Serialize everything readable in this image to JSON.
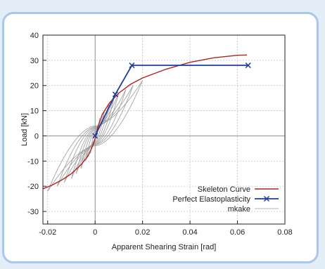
{
  "chart_data": {
    "type": "line",
    "xlabel": "Apparent Shearing Strain [rad]",
    "ylabel": "Load [kN]",
    "xlim": [
      -0.022,
      0.08
    ],
    "ylim": [
      -35,
      40
    ],
    "x_ticks": [
      "-0.02",
      "0",
      "0.02",
      "0.04",
      "0.06",
      "0.08"
    ],
    "y_ticks": [
      "40",
      "30",
      "20",
      "10",
      "0",
      "-10",
      "-20",
      "-30"
    ],
    "grid": true,
    "legend_position": "bottom-right",
    "series": [
      {
        "name": "Skeleton Curve",
        "color": "#b22222",
        "marker": "none",
        "points": [
          [
            -0.022,
            -21
          ],
          [
            -0.018,
            -19.5
          ],
          [
            -0.014,
            -17.5
          ],
          [
            -0.01,
            -15
          ],
          [
            -0.006,
            -11.5
          ],
          [
            -0.003,
            -8
          ],
          [
            -0.001,
            -4
          ],
          [
            0,
            -1
          ],
          [
            0.001,
            3
          ],
          [
            0.003,
            8.5
          ],
          [
            0.006,
            13
          ],
          [
            0.01,
            17
          ],
          [
            0.015,
            20.5
          ],
          [
            0.02,
            23
          ],
          [
            0.03,
            26.5
          ],
          [
            0.04,
            29.2
          ],
          [
            0.05,
            31
          ],
          [
            0.06,
            32
          ],
          [
            0.064,
            32.1
          ]
        ]
      },
      {
        "name": "Perfect Elastoplasticity",
        "color": "#1f3c9c",
        "marker": "x",
        "points": [
          [
            0,
            0
          ],
          [
            0.0085,
            16.5
          ],
          [
            0.0155,
            28
          ],
          [
            0.0645,
            28
          ]
        ]
      },
      {
        "name": "mkake",
        "color": "#9a9a9a",
        "marker": "none",
        "loops": [
          {
            "amp": 0.002,
            "peak": 7
          },
          {
            "amp": 0.004,
            "peak": 10
          },
          {
            "amp": 0.006,
            "peak": 13
          },
          {
            "amp": 0.008,
            "peak": 15
          },
          {
            "amp": 0.01,
            "peak": 17
          },
          {
            "amp": 0.013,
            "peak": 18.5
          },
          {
            "amp": 0.016,
            "peak": 20
          },
          {
            "amp": 0.02,
            "peak": 22
          }
        ]
      }
    ]
  }
}
